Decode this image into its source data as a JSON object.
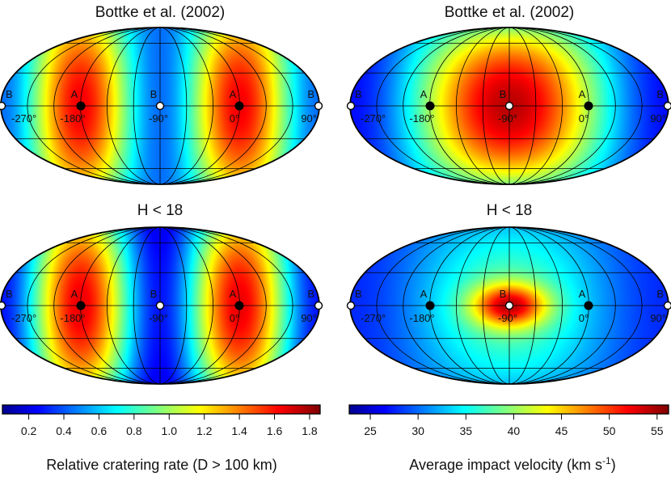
{
  "chart_data": [
    {
      "type": "heatmap",
      "projection": "mollweide",
      "title": "Bottke et al. (2002)",
      "quantity": "Relative cratering rate (D > 100 km)",
      "pattern": "rate-bottke",
      "points": [
        {
          "marker": "B",
          "lon_label": "-270°",
          "color": "white"
        },
        {
          "marker": "A",
          "lon_label": "-180°",
          "color": "black"
        },
        {
          "marker": "B",
          "lon_label": "-90°",
          "color": "white"
        },
        {
          "marker": "A",
          "lon_label": "0°",
          "color": "black"
        },
        {
          "marker": "B",
          "lon_label": "90°",
          "color": "white"
        }
      ]
    },
    {
      "type": "heatmap",
      "projection": "mollweide",
      "title": "Bottke et al. (2002)",
      "quantity": "Average impact velocity (km s-1)",
      "pattern": "vel-bottke",
      "points": [
        {
          "marker": "B",
          "lon_label": "-270°",
          "color": "white"
        },
        {
          "marker": "A",
          "lon_label": "-180°",
          "color": "black"
        },
        {
          "marker": "B",
          "lon_label": "-90°",
          "color": "white"
        },
        {
          "marker": "A",
          "lon_label": "0°",
          "color": "black"
        },
        {
          "marker": "B",
          "lon_label": "90°",
          "color": "white"
        }
      ]
    },
    {
      "type": "heatmap",
      "projection": "mollweide",
      "title": "H < 18",
      "quantity": "Relative cratering rate (D > 100 km)",
      "pattern": "rate-h18",
      "points": [
        {
          "marker": "B",
          "lon_label": "-270°",
          "color": "white"
        },
        {
          "marker": "A",
          "lon_label": "-180°",
          "color": "black"
        },
        {
          "marker": "B",
          "lon_label": "-90°",
          "color": "white"
        },
        {
          "marker": "A",
          "lon_label": "0°",
          "color": "black"
        },
        {
          "marker": "B",
          "lon_label": "90°",
          "color": "white"
        }
      ]
    },
    {
      "type": "heatmap",
      "projection": "mollweide",
      "title": "H < 18",
      "quantity": "Average impact velocity (km s-1)",
      "pattern": "vel-h18",
      "points": [
        {
          "marker": "B",
          "lon_label": "-270°",
          "color": "white"
        },
        {
          "marker": "A",
          "lon_label": "-180°",
          "color": "black"
        },
        {
          "marker": "B",
          "lon_label": "-90°",
          "color": "white"
        },
        {
          "marker": "A",
          "lon_label": "0°",
          "color": "black"
        },
        {
          "marker": "B",
          "lon_label": "90°",
          "color": "white"
        }
      ]
    }
  ],
  "colorbars": [
    {
      "label": "Relative cratering rate (D > 100 km)",
      "range": [
        0.05,
        1.86
      ],
      "ticks": [
        "0.2",
        "0.4",
        "0.6",
        "0.8",
        "1.0",
        "1.2",
        "1.4",
        "1.6",
        "1.8"
      ]
    },
    {
      "label_prefix": "Average impact velocity (km s",
      "label_sup": "-1",
      "label_suffix": ")",
      "range": [
        22.8,
        56.2
      ],
      "ticks": [
        "25",
        "30",
        "35",
        "40",
        "45",
        "50",
        "55"
      ]
    }
  ],
  "colors": {
    "colormap": [
      "#00008f",
      "#0000ff",
      "#00ffff",
      "#ffff00",
      "#ff0000",
      "#800000"
    ]
  }
}
